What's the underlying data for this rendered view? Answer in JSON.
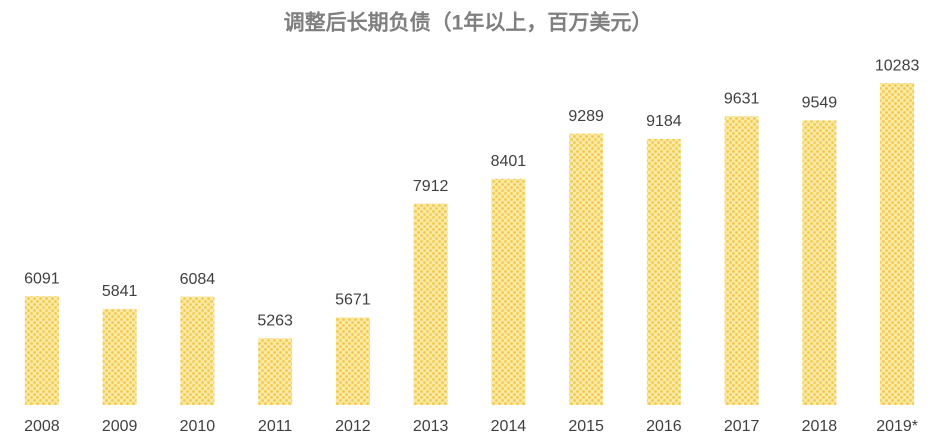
{
  "chart_data": {
    "type": "bar",
    "title": "调整后长期负债（1年以上，百万美元）",
    "categories": [
      "2008",
      "2009",
      "2010",
      "2011",
      "2012",
      "2013",
      "2014",
      "2015",
      "2016",
      "2017",
      "2018",
      "2019*"
    ],
    "values": [
      6091,
      5841,
      6084,
      5263,
      5671,
      7912,
      8401,
      9289,
      9184,
      9631,
      9549,
      10283
    ],
    "color": "#f2c94c",
    "ylim": [
      3950,
      10600
    ]
  }
}
